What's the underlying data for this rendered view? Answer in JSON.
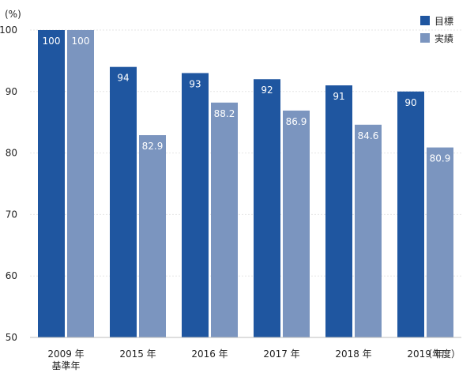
{
  "chart_data": {
    "type": "bar",
    "y_unit_label": "(%)",
    "x_unit_label": "（年度）",
    "categories": [
      "2009 年",
      "2015 年",
      "2016 年",
      "2017 年",
      "2018 年",
      "2019 年"
    ],
    "category_sublabels": [
      "基準年",
      "",
      "",
      "",
      "",
      ""
    ],
    "series": [
      {
        "name": "目標",
        "color": "#1f56a0",
        "values": [
          100,
          94,
          93,
          92,
          91,
          90
        ],
        "labels": [
          "100",
          "94",
          "93",
          "92",
          "91",
          "90"
        ]
      },
      {
        "name": "実績",
        "color": "#7b95bf",
        "values": [
          100,
          82.9,
          88.2,
          86.9,
          84.6,
          80.9
        ],
        "labels": [
          "100",
          "82.9",
          "88.2",
          "86.9",
          "84.6",
          "80.9"
        ]
      }
    ],
    "ylim": [
      50,
      100
    ],
    "yticks": [
      50,
      60,
      70,
      80,
      90,
      100
    ],
    "ytick_labels": [
      "50",
      "60",
      "70",
      "80",
      "90",
      "100"
    ],
    "grid": true,
    "legend_position": "top-right"
  }
}
